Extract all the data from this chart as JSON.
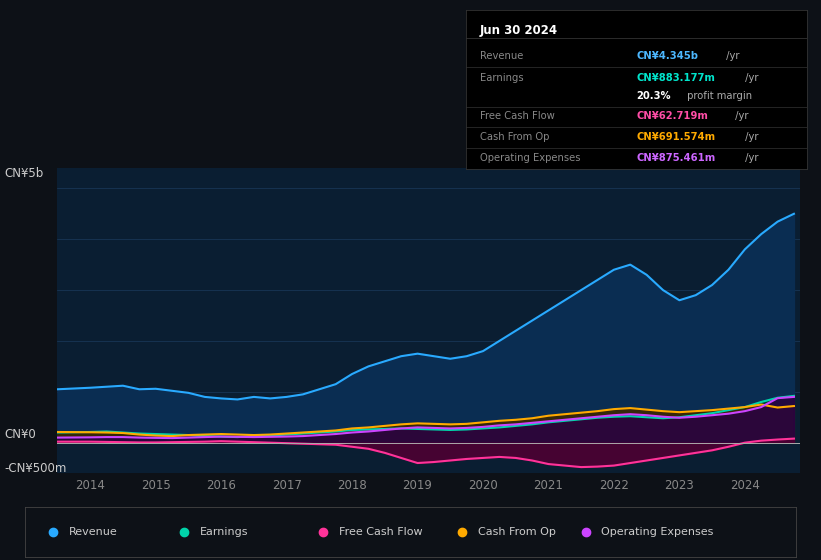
{
  "bg_color": "#0d1117",
  "chart_bg": "#0a1e32",
  "title": "Jun 30 2024",
  "ylabel_top": "CN¥5b",
  "ylabel_zero": "CN¥0",
  "ylabel_neg": "-CN¥500m",
  "ylim": [
    -600,
    5400
  ],
  "xlim": [
    2013.5,
    2024.85
  ],
  "xticks": [
    2014,
    2015,
    2016,
    2017,
    2018,
    2019,
    2020,
    2021,
    2022,
    2023,
    2024
  ],
  "revenue_color": "#29aaff",
  "revenue_fill": "#0a2d52",
  "earnings_color": "#00d4aa",
  "earnings_fill": "#003d30",
  "fcf_color": "#ff3399",
  "fcf_fill": "#4d0033",
  "cop_color": "#ffaa00",
  "cop_fill": "#3d2600",
  "opex_color": "#cc44ff",
  "opex_fill": "#2a0044",
  "revenue_x": [
    2013.5,
    2014.0,
    2014.25,
    2014.5,
    2014.75,
    2015.0,
    2015.25,
    2015.5,
    2015.75,
    2016.0,
    2016.25,
    2016.5,
    2016.75,
    2017.0,
    2017.25,
    2017.5,
    2017.75,
    2018.0,
    2018.25,
    2018.5,
    2018.75,
    2019.0,
    2019.25,
    2019.5,
    2019.75,
    2020.0,
    2020.25,
    2020.5,
    2020.75,
    2021.0,
    2021.25,
    2021.5,
    2021.75,
    2022.0,
    2022.25,
    2022.5,
    2022.75,
    2023.0,
    2023.25,
    2023.5,
    2023.75,
    2024.0,
    2024.25,
    2024.5,
    2024.75
  ],
  "revenue_y": [
    1050,
    1080,
    1100,
    1120,
    1050,
    1060,
    1020,
    980,
    900,
    870,
    850,
    900,
    870,
    900,
    950,
    1050,
    1150,
    1350,
    1500,
    1600,
    1700,
    1750,
    1700,
    1650,
    1700,
    1800,
    2000,
    2200,
    2400,
    2600,
    2800,
    3000,
    3200,
    3400,
    3500,
    3300,
    3000,
    2800,
    2900,
    3100,
    3400,
    3800,
    4100,
    4345,
    4500
  ],
  "earnings_x": [
    2013.5,
    2014.0,
    2014.25,
    2014.5,
    2014.75,
    2015.0,
    2015.25,
    2015.5,
    2015.75,
    2016.0,
    2016.25,
    2016.5,
    2016.75,
    2017.0,
    2017.25,
    2017.5,
    2017.75,
    2018.0,
    2018.25,
    2018.5,
    2018.75,
    2019.0,
    2019.25,
    2019.5,
    2019.75,
    2020.0,
    2020.25,
    2020.5,
    2020.75,
    2021.0,
    2021.25,
    2021.5,
    2021.75,
    2022.0,
    2022.25,
    2022.5,
    2022.75,
    2023.0,
    2023.25,
    2023.5,
    2023.75,
    2024.0,
    2024.25,
    2024.5,
    2024.75
  ],
  "earnings_y": [
    200,
    210,
    220,
    200,
    180,
    170,
    160,
    150,
    130,
    120,
    110,
    130,
    140,
    160,
    180,
    200,
    220,
    250,
    260,
    270,
    280,
    270,
    260,
    250,
    260,
    280,
    300,
    330,
    360,
    400,
    430,
    460,
    490,
    510,
    520,
    500,
    480,
    500,
    540,
    580,
    640,
    700,
    800,
    883,
    920
  ],
  "fcf_x": [
    2013.5,
    2014.0,
    2014.25,
    2014.5,
    2014.75,
    2015.0,
    2015.25,
    2015.5,
    2015.75,
    2016.0,
    2016.25,
    2016.5,
    2016.75,
    2017.0,
    2017.25,
    2017.5,
    2017.75,
    2018.0,
    2018.25,
    2018.5,
    2018.75,
    2019.0,
    2019.25,
    2019.5,
    2019.75,
    2020.0,
    2020.25,
    2020.5,
    2020.75,
    2021.0,
    2021.25,
    2021.5,
    2021.75,
    2022.0,
    2022.25,
    2022.5,
    2022.75,
    2023.0,
    2023.25,
    2023.5,
    2023.75,
    2024.0,
    2024.25,
    2024.5,
    2024.75
  ],
  "fcf_y": [
    20,
    20,
    15,
    10,
    5,
    5,
    10,
    15,
    20,
    30,
    20,
    10,
    0,
    -10,
    -20,
    -30,
    -40,
    -80,
    -120,
    -200,
    -300,
    -400,
    -380,
    -350,
    -320,
    -300,
    -280,
    -300,
    -350,
    -420,
    -450,
    -480,
    -470,
    -450,
    -400,
    -350,
    -300,
    -250,
    -200,
    -150,
    -80,
    0,
    40,
    62,
    80
  ],
  "cop_x": [
    2013.5,
    2014.0,
    2014.25,
    2014.5,
    2014.75,
    2015.0,
    2015.25,
    2015.5,
    2015.75,
    2016.0,
    2016.25,
    2016.5,
    2016.75,
    2017.0,
    2017.25,
    2017.5,
    2017.75,
    2018.0,
    2018.25,
    2018.5,
    2018.75,
    2019.0,
    2019.25,
    2019.5,
    2019.75,
    2020.0,
    2020.25,
    2020.5,
    2020.75,
    2021.0,
    2021.25,
    2021.5,
    2021.75,
    2022.0,
    2022.25,
    2022.5,
    2022.75,
    2023.0,
    2023.25,
    2023.5,
    2023.75,
    2024.0,
    2024.25,
    2024.5,
    2024.75
  ],
  "cop_y": [
    210,
    205,
    200,
    190,
    160,
    140,
    130,
    150,
    160,
    170,
    160,
    150,
    160,
    180,
    200,
    220,
    240,
    280,
    300,
    330,
    360,
    380,
    370,
    360,
    370,
    400,
    430,
    450,
    480,
    530,
    560,
    590,
    620,
    660,
    680,
    650,
    620,
    600,
    620,
    640,
    670,
    700,
    750,
    691,
    720
  ],
  "opex_x": [
    2013.5,
    2014.0,
    2014.25,
    2014.5,
    2014.75,
    2015.0,
    2015.25,
    2015.5,
    2015.75,
    2016.0,
    2016.25,
    2016.5,
    2016.75,
    2017.0,
    2017.25,
    2017.5,
    2017.75,
    2018.0,
    2018.25,
    2018.5,
    2018.75,
    2019.0,
    2019.25,
    2019.5,
    2019.75,
    2020.0,
    2020.25,
    2020.5,
    2020.75,
    2021.0,
    2021.25,
    2021.5,
    2021.75,
    2022.0,
    2022.25,
    2022.5,
    2022.75,
    2023.0,
    2023.25,
    2023.5,
    2023.75,
    2024.0,
    2024.25,
    2024.5,
    2024.75
  ],
  "opex_y": [
    100,
    105,
    110,
    110,
    100,
    95,
    90,
    100,
    110,
    120,
    115,
    110,
    115,
    120,
    130,
    150,
    170,
    200,
    220,
    250,
    280,
    300,
    290,
    280,
    290,
    310,
    340,
    360,
    390,
    420,
    450,
    480,
    510,
    540,
    560,
    540,
    510,
    490,
    510,
    540,
    570,
    620,
    700,
    875,
    900
  ],
  "legend": [
    {
      "label": "Revenue",
      "color": "#29aaff"
    },
    {
      "label": "Earnings",
      "color": "#00d4aa"
    },
    {
      "label": "Free Cash Flow",
      "color": "#ff3399"
    },
    {
      "label": "Cash From Op",
      "color": "#ffaa00"
    },
    {
      "label": "Operating Expenses",
      "color": "#cc44ff"
    }
  ],
  "infobox_title": "Jun 30 2024",
  "infobox_rows": [
    {
      "label": "Revenue",
      "value": "CN¥4.345b",
      "suffix": " /yr",
      "color": "#4db8ff"
    },
    {
      "label": "Earnings",
      "value": "CN¥883.177m",
      "suffix": " /yr",
      "color": "#00e5cc"
    },
    {
      "label": "",
      "value": "20.3%",
      "suffix": " profit margin",
      "color": "#ffffff",
      "suffix_color": "#aaaaaa"
    },
    {
      "label": "Free Cash Flow",
      "value": "CN¥62.719m",
      "suffix": " /yr",
      "color": "#ff4da6"
    },
    {
      "label": "Cash From Op",
      "value": "CN¥691.574m",
      "suffix": " /yr",
      "color": "#ffaa00"
    },
    {
      "label": "Operating Expenses",
      "value": "CN¥875.461m",
      "suffix": " /yr",
      "color": "#cc66ff"
    }
  ]
}
